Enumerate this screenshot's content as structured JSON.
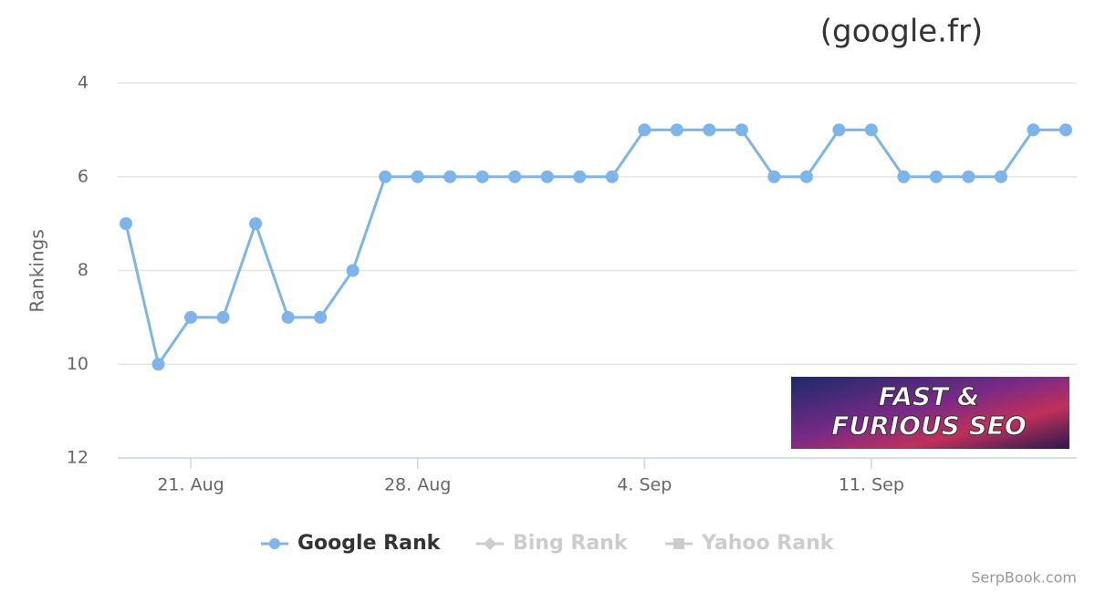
{
  "chart_data": {
    "type": "line",
    "title": "(google.fr)",
    "y_label": "Rankings",
    "categories": [
      null,
      null,
      "21. Aug",
      null,
      null,
      null,
      null,
      null,
      null,
      "28. Aug",
      null,
      null,
      null,
      null,
      null,
      null,
      "4. Sep",
      null,
      null,
      null,
      null,
      null,
      null,
      "11. Sep",
      null,
      null,
      null,
      null,
      null,
      null
    ],
    "series": [
      {
        "name": "Google Rank",
        "color": "#7cb5ec",
        "marker": "circle",
        "visible": true,
        "values": [
          7,
          10,
          9,
          9,
          7,
          9,
          9,
          8,
          6,
          6,
          6,
          6,
          6,
          6,
          6,
          6,
          5,
          5,
          5,
          5,
          6,
          6,
          5,
          5,
          6,
          6,
          6,
          6,
          5,
          5
        ]
      },
      {
        "name": "Bing Rank",
        "color": "#cccccc",
        "marker": "diamond",
        "visible": false,
        "values": [
          null,
          null,
          null,
          null,
          null,
          null,
          null,
          null,
          null,
          null,
          null,
          null,
          null,
          null,
          null,
          null,
          null,
          null,
          null,
          null,
          null,
          null,
          null,
          null,
          null,
          null,
          null,
          null,
          null,
          null
        ]
      },
      {
        "name": "Yahoo Rank",
        "color": "#cccccc",
        "marker": "square",
        "visible": false,
        "values": [
          null,
          null,
          null,
          null,
          null,
          null,
          null,
          null,
          null,
          null,
          null,
          null,
          null,
          null,
          null,
          null,
          null,
          null,
          null,
          null,
          null,
          null,
          null,
          null,
          null,
          null,
          null,
          null,
          null,
          null
        ]
      }
    ],
    "ylim": [
      4,
      12
    ],
    "reversed": true,
    "yticks": [
      4,
      6,
      8,
      10,
      12
    ],
    "grid": true,
    "annotations": [
      "FAST &",
      "FURIOUS SEO"
    ],
    "credits": "SerpBook.com"
  }
}
